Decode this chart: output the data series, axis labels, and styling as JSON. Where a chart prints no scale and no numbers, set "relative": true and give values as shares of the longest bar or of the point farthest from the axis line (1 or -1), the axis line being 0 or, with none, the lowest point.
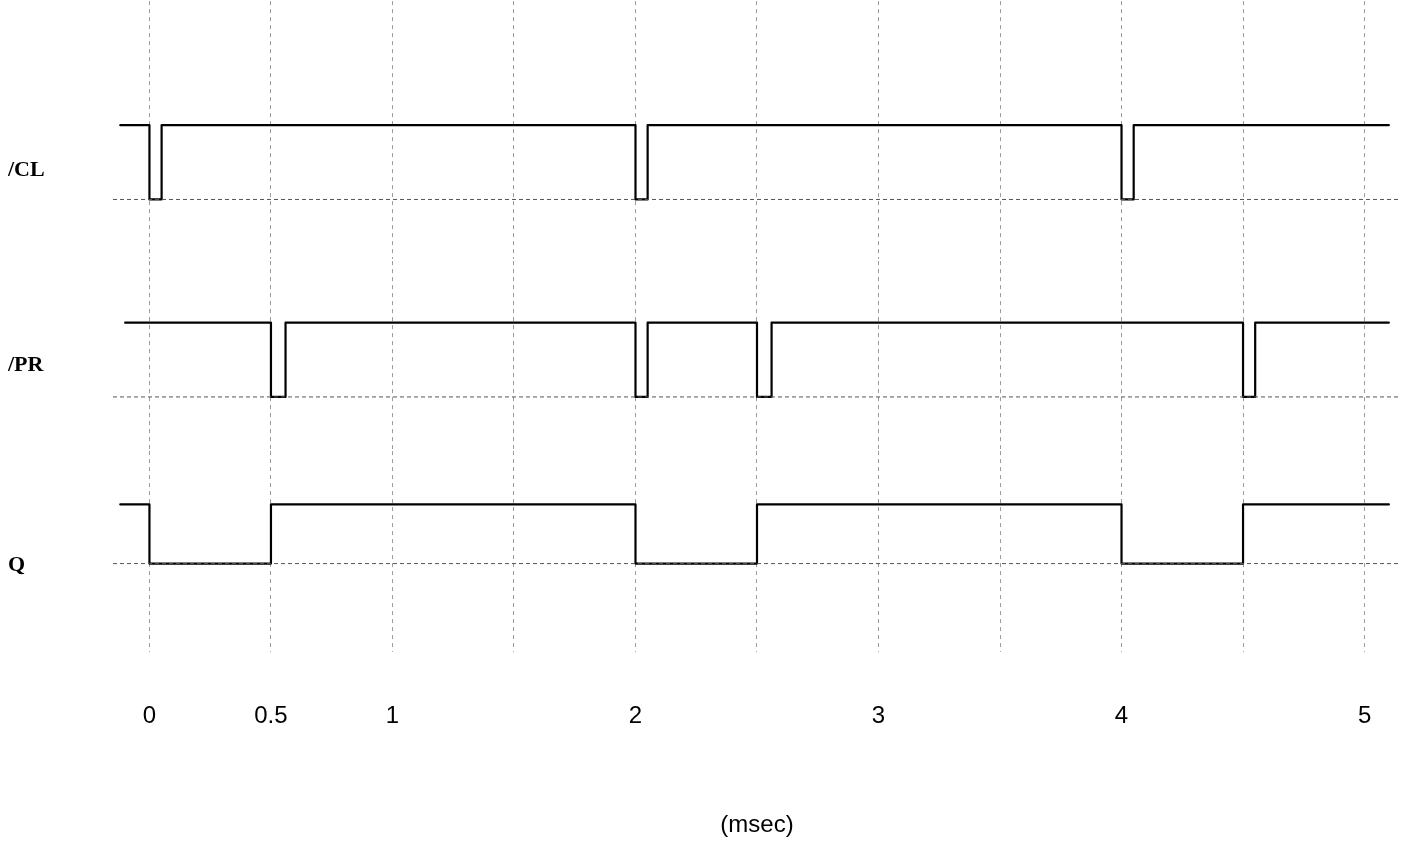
{
  "chart_data": [
    {
      "type": "step",
      "relative": true,
      "ylabel": "/CL",
      "x": [
        -0.12,
        0,
        0.05,
        2,
        2.05,
        4,
        4.05,
        5.1
      ],
      "series": [
        {
          "color": "#000000",
          "values": [
            1,
            0,
            1,
            0,
            1,
            0,
            1,
            1
          ]
        }
      ],
      "xlim": [
        -0.15,
        5.15
      ],
      "xticks": [
        0,
        0.5,
        1,
        {
          "value": 1.5,
          "label": null
        },
        2,
        {
          "value": 2.5,
          "label": null
        },
        3,
        {
          "value": 3.5,
          "label": null
        },
        4,
        {
          "value": 4.5,
          "label": null
        },
        5
      ],
      "grid": "x",
      "tick_labels": false
    },
    {
      "type": "step",
      "relative": true,
      "ylabel": "/PR",
      "x": [
        -0.1,
        0.5,
        0.56,
        2,
        2.05,
        2.5,
        2.56,
        4.5,
        4.55,
        5.1
      ],
      "series": [
        {
          "color": "#000000",
          "values": [
            1,
            0,
            1,
            0,
            1,
            0,
            1,
            0,
            1,
            1
          ]
        }
      ],
      "xlim": [
        -0.15,
        5.15
      ],
      "xticks": [
        0,
        0.5,
        1,
        {
          "value": 1.5,
          "label": null
        },
        2,
        {
          "value": 2.5,
          "label": null
        },
        3,
        {
          "value": 3.5,
          "label": null
        },
        4,
        {
          "value": 4.5,
          "label": null
        },
        5
      ],
      "grid": "x",
      "tick_labels": false
    },
    {
      "type": "step",
      "relative": true,
      "ylabel": "Q",
      "xlabel": "(msec)",
      "x": [
        -0.12,
        0,
        0.5,
        2,
        2.5,
        4,
        4.5,
        5.1
      ],
      "series": [
        {
          "color": "#000000",
          "values": [
            1,
            0,
            1,
            0,
            1,
            0,
            1,
            1
          ]
        }
      ],
      "xlim": [
        -0.15,
        5.15
      ],
      "xticks": [
        0,
        0.5,
        1,
        {
          "value": 1.5,
          "label": null
        },
        2,
        {
          "value": 2.5,
          "label": null
        },
        3,
        {
          "value": 3.5,
          "label": null
        },
        4,
        {
          "value": 4.5,
          "label": null
        },
        5
      ],
      "grid": "x",
      "tick_labels": "x"
    }
  ]
}
